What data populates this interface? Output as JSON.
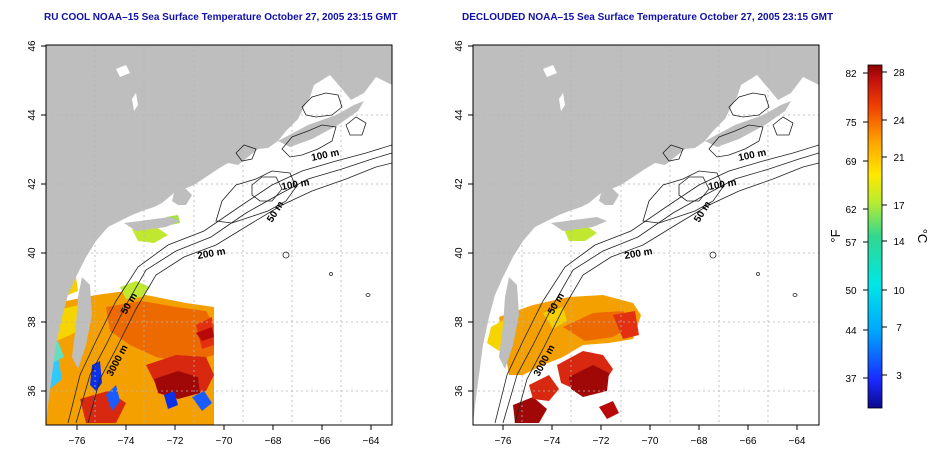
{
  "panels": [
    {
      "title": "RU COOL NOAA–15 Sea Surface Temperature October 27, 2005 23:15 GMT",
      "contour_labels": [
        "100 m",
        "100 m",
        "50 m",
        "200 m",
        "50 m",
        "3000 m"
      ]
    },
    {
      "title": "DECLOUDED NOAA–15 Sea Surface Temperature October 27, 2005 23:15 GMT",
      "contour_labels": [
        "100 m",
        "100 m",
        "50 m",
        "200 m",
        "50 m",
        "3000 m"
      ]
    }
  ],
  "axes": {
    "x_ticks": [
      "−76",
      "−74",
      "−72",
      "−70",
      "−68",
      "−66",
      "−64"
    ],
    "y_ticks": [
      "46",
      "44",
      "42",
      "40",
      "38",
      "36"
    ]
  },
  "colorbar": {
    "fahrenheit_label": "°F",
    "celsius_label": "°C",
    "fahrenheit_ticks": [
      "82",
      "75",
      "69",
      "62",
      "57",
      "50",
      "44",
      "37"
    ],
    "celsius_ticks": [
      "28",
      "24",
      "21",
      "17",
      "14",
      "10",
      "7",
      "3"
    ]
  },
  "colors": {
    "land": "#bebebe",
    "title": "#1010a8",
    "grid": "#b4b4b4",
    "contour": "#222222"
  }
}
